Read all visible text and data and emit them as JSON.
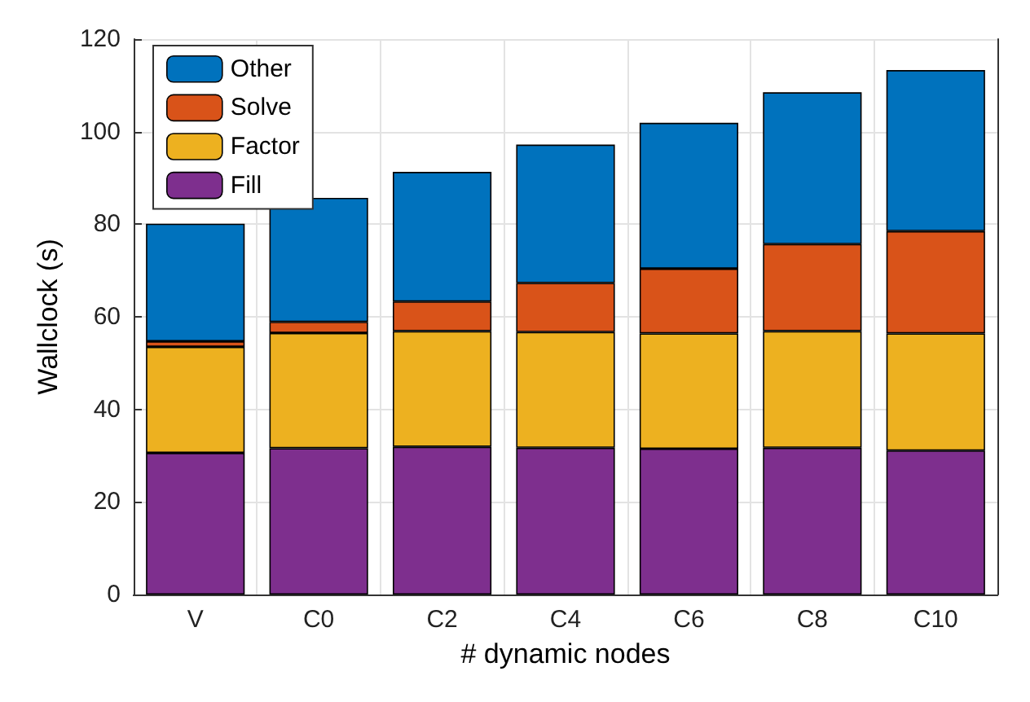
{
  "chart_data": {
    "type": "bar",
    "stacked": true,
    "xlabel": "# dynamic nodes",
    "ylabel": "Wallclock (s)",
    "categories": [
      "V",
      "C0",
      "C2",
      "C4",
      "C6",
      "C8",
      "C10"
    ],
    "series": [
      {
        "name": "Fill",
        "color": "#7e2f8e",
        "values": [
          30.6,
          31.6,
          31.9,
          31.7,
          31.5,
          31.7,
          31.1
        ]
      },
      {
        "name": "Factor",
        "color": "#edb120",
        "values": [
          22.9,
          24.9,
          25.0,
          25.0,
          24.9,
          25.2,
          25.3
        ]
      },
      {
        "name": "Solve",
        "color": "#d95319",
        "values": [
          1.2,
          2.4,
          6.4,
          10.6,
          14.0,
          18.8,
          22.1
        ]
      },
      {
        "name": "Other",
        "color": "#0072bd",
        "values": [
          25.4,
          26.8,
          28.0,
          29.9,
          31.5,
          32.8,
          34.8
        ]
      }
    ],
    "ylim": [
      0,
      120
    ],
    "yticks": [
      0,
      20,
      40,
      60,
      80,
      100,
      120
    ],
    "grid": true,
    "legend": "top left"
  }
}
